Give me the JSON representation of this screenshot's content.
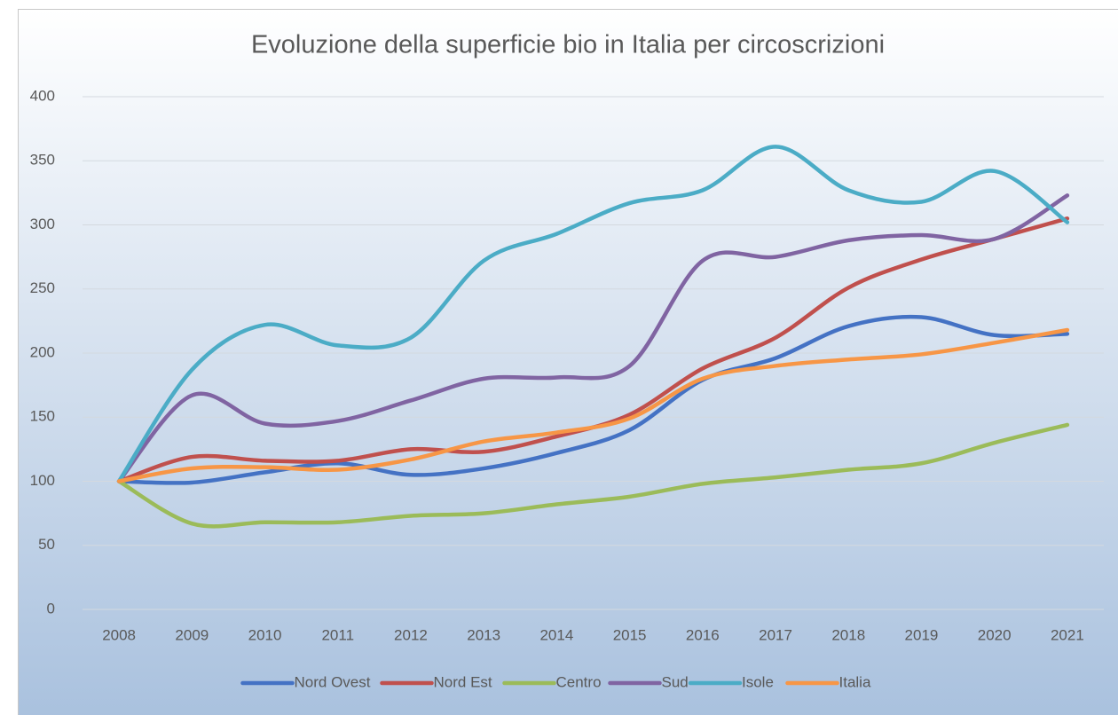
{
  "chart_data": {
    "type": "line",
    "title": "Evoluzione della superficie bio in Italia per circoscrizioni",
    "categories": [
      "2008",
      "2009",
      "2010",
      "2011",
      "2012",
      "2013",
      "2014",
      "2015",
      "2016",
      "2017",
      "2018",
      "2019",
      "2020",
      "2021"
    ],
    "series": [
      {
        "name": "Nord Ovest",
        "color": "#4472c4",
        "values": [
          100,
          99,
          107,
          114,
          105,
          110,
          122,
          140,
          179,
          196,
          221,
          228,
          214,
          215
        ]
      },
      {
        "name": "Nord Est",
        "color": "#c0504d",
        "values": [
          100,
          119,
          116,
          116,
          125,
          123,
          135,
          152,
          188,
          212,
          251,
          273,
          289,
          305
        ]
      },
      {
        "name": "Centro",
        "color": "#9bbb59",
        "values": [
          100,
          67,
          68,
          68,
          73,
          75,
          82,
          88,
          98,
          103,
          109,
          114,
          130,
          144
        ]
      },
      {
        "name": "Sud",
        "color": "#8064a2",
        "values": [
          100,
          167,
          145,
          147,
          163,
          180,
          181,
          190,
          272,
          275,
          288,
          292,
          289,
          323
        ]
      },
      {
        "name": "Isole",
        "color": "#4bacc6",
        "values": [
          100,
          187,
          222,
          206,
          212,
          272,
          293,
          317,
          327,
          361,
          327,
          318,
          342,
          302
        ]
      },
      {
        "name": "Italia",
        "color": "#f79646",
        "values": [
          100,
          110,
          111,
          109,
          117,
          131,
          138,
          149,
          180,
          190,
          195,
          199,
          208,
          218
        ]
      }
    ],
    "ylim": [
      0,
      400
    ],
    "yticks": [
      0,
      50,
      100,
      150,
      200,
      250,
      300,
      350,
      400
    ],
    "grid": true,
    "legend": "bottom"
  }
}
